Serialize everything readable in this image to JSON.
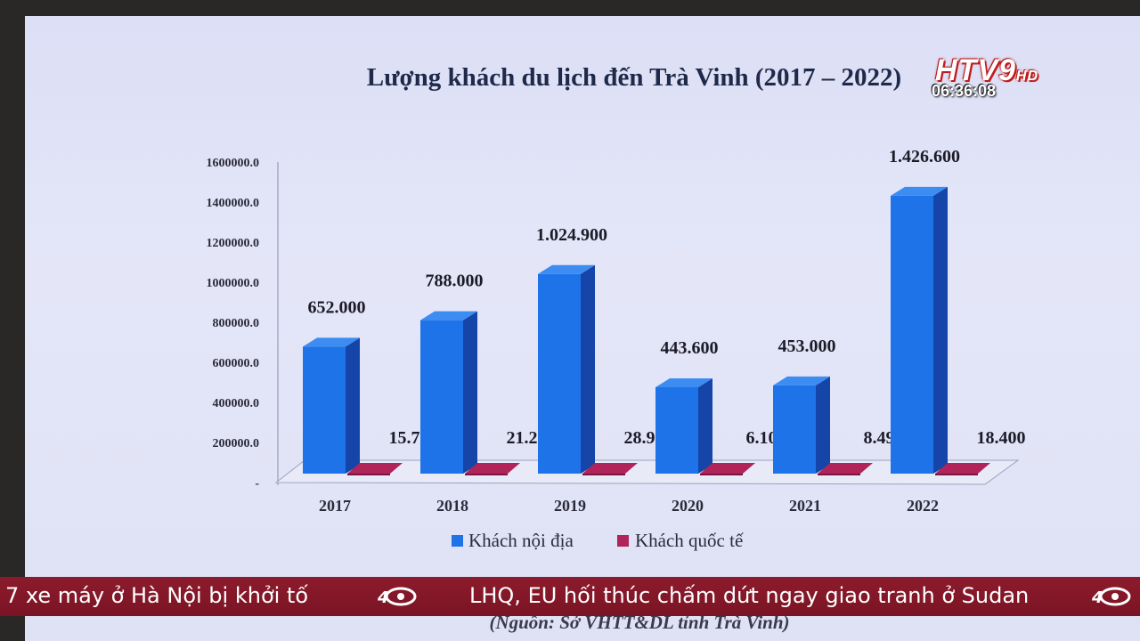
{
  "chart_data": {
    "type": "bar",
    "title": "Lượng khách du lịch đến Trà Vinh (2017 – 2022)",
    "categories": [
      "2017",
      "2018",
      "2019",
      "2020",
      "2021",
      "2022"
    ],
    "series": [
      {
        "name": "Khách nội địa",
        "color": "#1f73e8",
        "values": [
          652000,
          788000,
          1024900,
          443600,
          453000,
          1426600
        ],
        "labels": [
          "652.000",
          "788.000",
          "1.024.900",
          "443.600",
          "453.000",
          "1.426.600"
        ]
      },
      {
        "name": "Khách quốc tế",
        "color": "#b0245a",
        "values": [
          15780,
          21200,
          28900,
          6100,
          8497,
          18400
        ],
        "labels": [
          "15.780",
          "21.200",
          "28.900",
          "6.100",
          "8.497",
          "18.400"
        ]
      }
    ],
    "yticks": [
      "1600000.0",
      "1400000.0",
      "1200000.0",
      "1000000.0",
      "800000.0",
      "600000.0",
      "400000.0",
      "200000.0",
      "-"
    ],
    "ylim": [
      0,
      1600000
    ],
    "legend_position": "bottom",
    "source": "(Nguồn: Sở VHTT&DL tỉnh Trà Vinh)"
  },
  "overlay": {
    "channel_logo": "HTV9HD",
    "clock": "06:36:08"
  },
  "ticker": {
    "items": [
      "7 xe máy ở Hà Nội bị khởi tố",
      "LHQ, EU hối thúc chấm dứt ngay giao tranh ở Sudan"
    ]
  }
}
